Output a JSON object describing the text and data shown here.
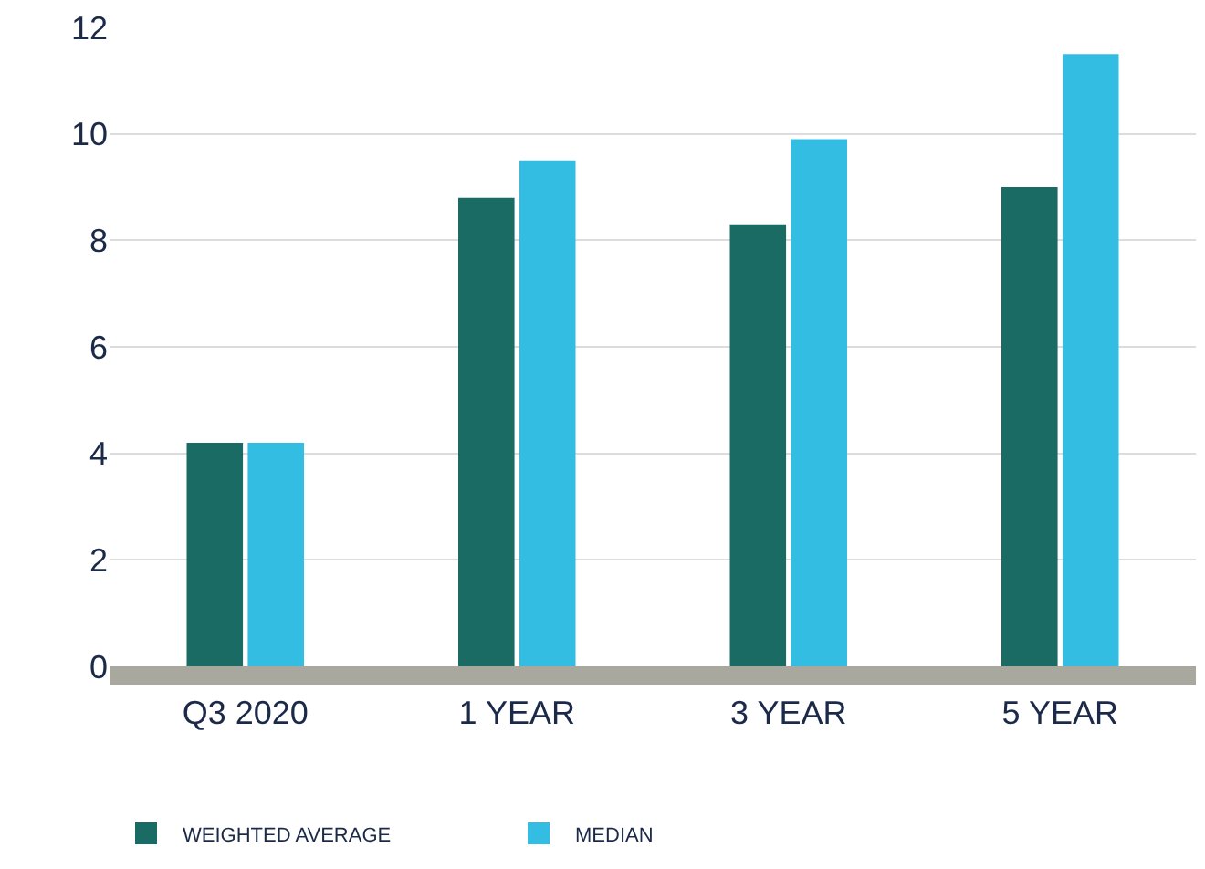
{
  "chart_data": {
    "type": "bar",
    "categories": [
      "Q3 2020",
      "1 YEAR",
      "3 YEAR",
      "5 YEAR"
    ],
    "series": [
      {
        "name": "WEIGHTED AVERAGE",
        "color": "#1a6b63",
        "values": [
          4.2,
          8.8,
          8.3,
          9.0
        ]
      },
      {
        "name": "MEDIAN",
        "color": "#33bde3",
        "values": [
          4.2,
          9.5,
          9.9,
          11.5
        ]
      }
    ],
    "ylim": [
      0,
      12
    ],
    "yticks": [
      0,
      2,
      4,
      6,
      8,
      10,
      12
    ],
    "grid": "y",
    "legend": "bottom left"
  }
}
